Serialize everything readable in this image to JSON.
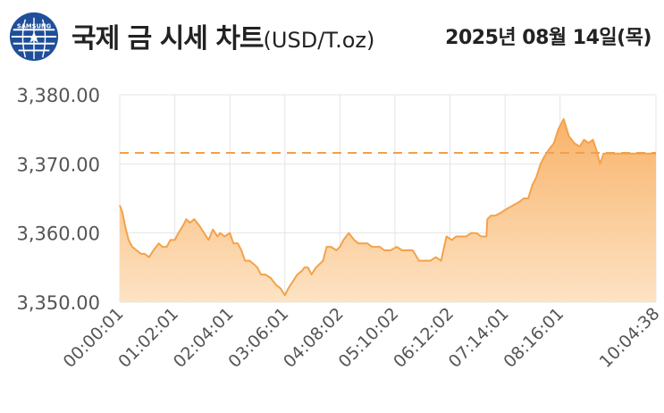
{
  "header": {
    "logo_text": "SAMSUNG",
    "title": "국제 금 시세 차트",
    "unit": "(USD/T.oz)",
    "date": "2025년 08월 14일(목)"
  },
  "colors": {
    "line": "#f4a24a",
    "fill_top": "#f8b36a",
    "fill_bottom": "#fde3c4",
    "reference": "#f2a04a",
    "grid": "#e4e4e4",
    "logo_blue": "#1f4f9a"
  },
  "chart_data": {
    "type": "area",
    "title": "국제 금 시세 차트",
    "unit": "(USD/T.oz)",
    "grid": true,
    "legend": "none",
    "y_range": [
      3350,
      3380
    ],
    "y_ticks": [
      3350,
      3360,
      3370,
      3380
    ],
    "y_tick_labels": [
      "3,350.00",
      "3,360.00",
      "3,370.00",
      "3,380.00"
    ],
    "x_range_minutes": [
      0,
      604
    ],
    "x_ticks": [
      {
        "label": "00:00:01",
        "t": 0
      },
      {
        "label": "01:02:01",
        "t": 62
      },
      {
        "label": "02:04:01",
        "t": 124
      },
      {
        "label": "03:06:01",
        "t": 186
      },
      {
        "label": "04:08:02",
        "t": 248
      },
      {
        "label": "05:10:02",
        "t": 310
      },
      {
        "label": "06:12:02",
        "t": 372
      },
      {
        "label": "07:14:01",
        "t": 434
      },
      {
        "label": "08:16:01",
        "t": 496
      },
      {
        "label": "10:04:38",
        "t": 604
      }
    ],
    "reference_value": 3371.6,
    "x": [
      0,
      3,
      6,
      10,
      14,
      19,
      24,
      28,
      33,
      38,
      44,
      48,
      53,
      57,
      62,
      66,
      71,
      75,
      79,
      84,
      90,
      95,
      100,
      105,
      110,
      113,
      118,
      124,
      128,
      133,
      137,
      141,
      146,
      151,
      155,
      159,
      164,
      170,
      176,
      181,
      186,
      190,
      195,
      200,
      205,
      208,
      212,
      216,
      221,
      225,
      229,
      233,
      238,
      244,
      248,
      252,
      258,
      264,
      269,
      274,
      279,
      284,
      288,
      293,
      298,
      305,
      312,
      318,
      323,
      330,
      337,
      344,
      350,
      356,
      362,
      368,
      374,
      379,
      385,
      390,
      396,
      402,
      407,
      413,
      414,
      418,
      423,
      430,
      436,
      443,
      450,
      455,
      460,
      465,
      469,
      474,
      478,
      483,
      489,
      494,
      500,
      506,
      512,
      518,
      523,
      528,
      533,
      537,
      541,
      545,
      549,
      552,
      556,
      560,
      563,
      566,
      569,
      572,
      575,
      578,
      581,
      585,
      589,
      593,
      596,
      600,
      604
    ],
    "y": [
      3364,
      3363,
      3361,
      3359,
      3358,
      3357.5,
      3357,
      3357,
      3356.5,
      3357.5,
      3358.5,
      3358,
      3358,
      3359,
      3359,
      3360,
      3361,
      3362,
      3361.5,
      3362,
      3361,
      3360,
      3359,
      3360.5,
      3359.5,
      3360,
      3359.5,
      3360,
      3358.5,
      3358.5,
      3357.5,
      3356,
      3356,
      3355.5,
      3355,
      3354,
      3354,
      3353.5,
      3352.5,
      3352,
      3351,
      3352,
      3353,
      3354,
      3354.5,
      3355,
      3355,
      3354,
      3355,
      3355.5,
      3356,
      3358,
      3358,
      3357.5,
      3358,
      3359,
      3360,
      3359,
      3358.5,
      3358.5,
      3358.5,
      3358,
      3358,
      3358,
      3357.5,
      3357.5,
      3358,
      3357.5,
      3357.5,
      3357.5,
      3356,
      3356,
      3356,
      3356.5,
      3356,
      3359.5,
      3359,
      3359.5,
      3359.5,
      3359.5,
      3360,
      3360,
      3359.5,
      3359.5,
      3362,
      3362.5,
      3362.5,
      3363,
      3363.5,
      3364,
      3364.5,
      3365,
      3365,
      3367,
      3368,
      3370,
      3371,
      3372,
      3373,
      3375,
      3376.5,
      3374,
      3373,
      3372.5,
      3373.5,
      3373,
      3373.5,
      3372,
      3370,
      3371.5,
      3371.5,
      3371.5,
      3371.5,
      3371.5,
      3371.5,
      3371.5,
      3371.5,
      3371.5,
      3371.5,
      3371.5,
      3371.5,
      3371.5,
      3371.5,
      3371.5,
      3371.5,
      3371.5,
      3371.5
    ]
  }
}
